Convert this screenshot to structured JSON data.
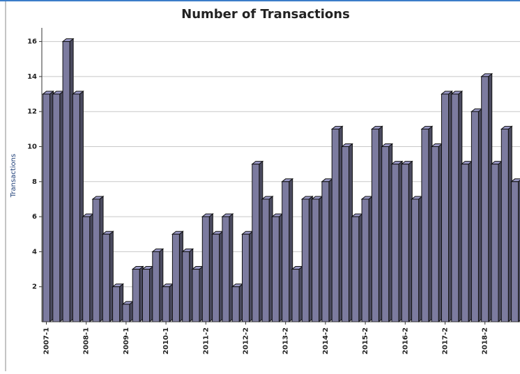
{
  "chart_data": {
    "type": "bar3d",
    "title": "Number of Transactions",
    "y_label": "Transactions",
    "categories": [
      "2007-1",
      null,
      null,
      null,
      "2008-1",
      null,
      null,
      null,
      "2009-1",
      null,
      null,
      null,
      "2010-1",
      null,
      null,
      null,
      "2011-2",
      null,
      null,
      null,
      "2012-2",
      null,
      null,
      null,
      "2013-2",
      null,
      null,
      null,
      "2014-2",
      null,
      null,
      null,
      "2015-2",
      null,
      null,
      null,
      "2016-2",
      null,
      null,
      null,
      "2017-2",
      null,
      null,
      null,
      "2018-2",
      null,
      null,
      null
    ],
    "values": [
      13,
      13,
      16,
      13,
      6,
      7,
      5,
      2,
      1,
      3,
      3,
      4,
      2,
      5,
      4,
      3,
      6,
      5,
      6,
      2,
      5,
      9,
      7,
      6,
      8,
      3,
      7,
      7,
      8,
      11,
      10,
      6,
      7,
      11,
      10,
      9,
      9,
      7,
      11,
      10,
      13,
      13,
      9,
      12,
      14,
      9,
      11,
      8
    ],
    "color": "#7c7b9f",
    "ylim": [
      0,
      16.7
    ],
    "yticks": [
      2,
      4,
      6,
      8,
      10,
      12,
      14,
      16
    ],
    "grid": true
  }
}
